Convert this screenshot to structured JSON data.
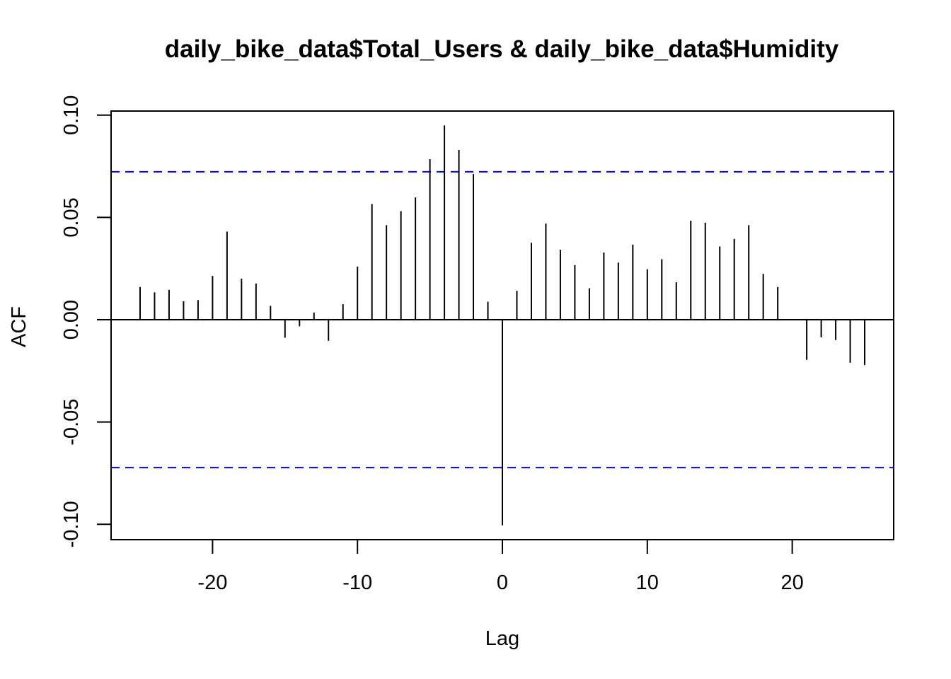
{
  "chart_data": {
    "type": "bar",
    "title": "daily_bike_data$Total_Users & daily_bike_data$Humidity",
    "xlabel": "Lag",
    "ylabel": "ACF",
    "xlim": [
      -27,
      27
    ],
    "ylim": [
      -0.1075,
      0.102
    ],
    "x_ticks": [
      -20,
      -10,
      0,
      10,
      20
    ],
    "x_tick_labels": [
      "-20",
      "-10",
      "0",
      "10",
      "20"
    ],
    "y_ticks": [
      -0.1,
      -0.05,
      0.0,
      0.05,
      0.1
    ],
    "y_tick_labels": [
      "-0.10",
      "-0.05",
      "0.00",
      "0.05",
      "0.10"
    ],
    "confidence_bound": 0.0723,
    "confidence_color": "#0000ff",
    "bar_color": "#000000",
    "grid": false,
    "lags": [
      -25,
      -24,
      -23,
      -22,
      -21,
      -20,
      -19,
      -18,
      -17,
      -16,
      -15,
      -14,
      -13,
      -12,
      -11,
      -10,
      -9,
      -8,
      -7,
      -6,
      -5,
      -4,
      -3,
      -2,
      -1,
      0,
      1,
      2,
      3,
      4,
      5,
      6,
      7,
      8,
      9,
      10,
      11,
      12,
      13,
      14,
      15,
      16,
      17,
      18,
      19,
      20,
      21,
      22,
      23,
      24,
      25
    ],
    "values": [
      0.016,
      0.0134,
      0.0146,
      0.009,
      0.0096,
      0.0214,
      0.0431,
      0.0201,
      0.0177,
      0.0068,
      -0.0088,
      -0.0032,
      0.0035,
      -0.0103,
      0.0076,
      0.026,
      0.0566,
      0.0462,
      0.0531,
      0.0598,
      0.0785,
      0.095,
      0.083,
      0.0712,
      0.0088,
      -0.1005,
      0.0141,
      0.0376,
      0.047,
      0.0342,
      0.0267,
      0.0154,
      0.0328,
      0.0279,
      0.0367,
      0.0247,
      0.0296,
      0.0183,
      0.0484,
      0.0474,
      0.0358,
      0.0395,
      0.0462,
      0.0224,
      0.016,
      0.0,
      -0.0196,
      -0.0086,
      -0.0099,
      -0.021,
      -0.0222
    ]
  }
}
